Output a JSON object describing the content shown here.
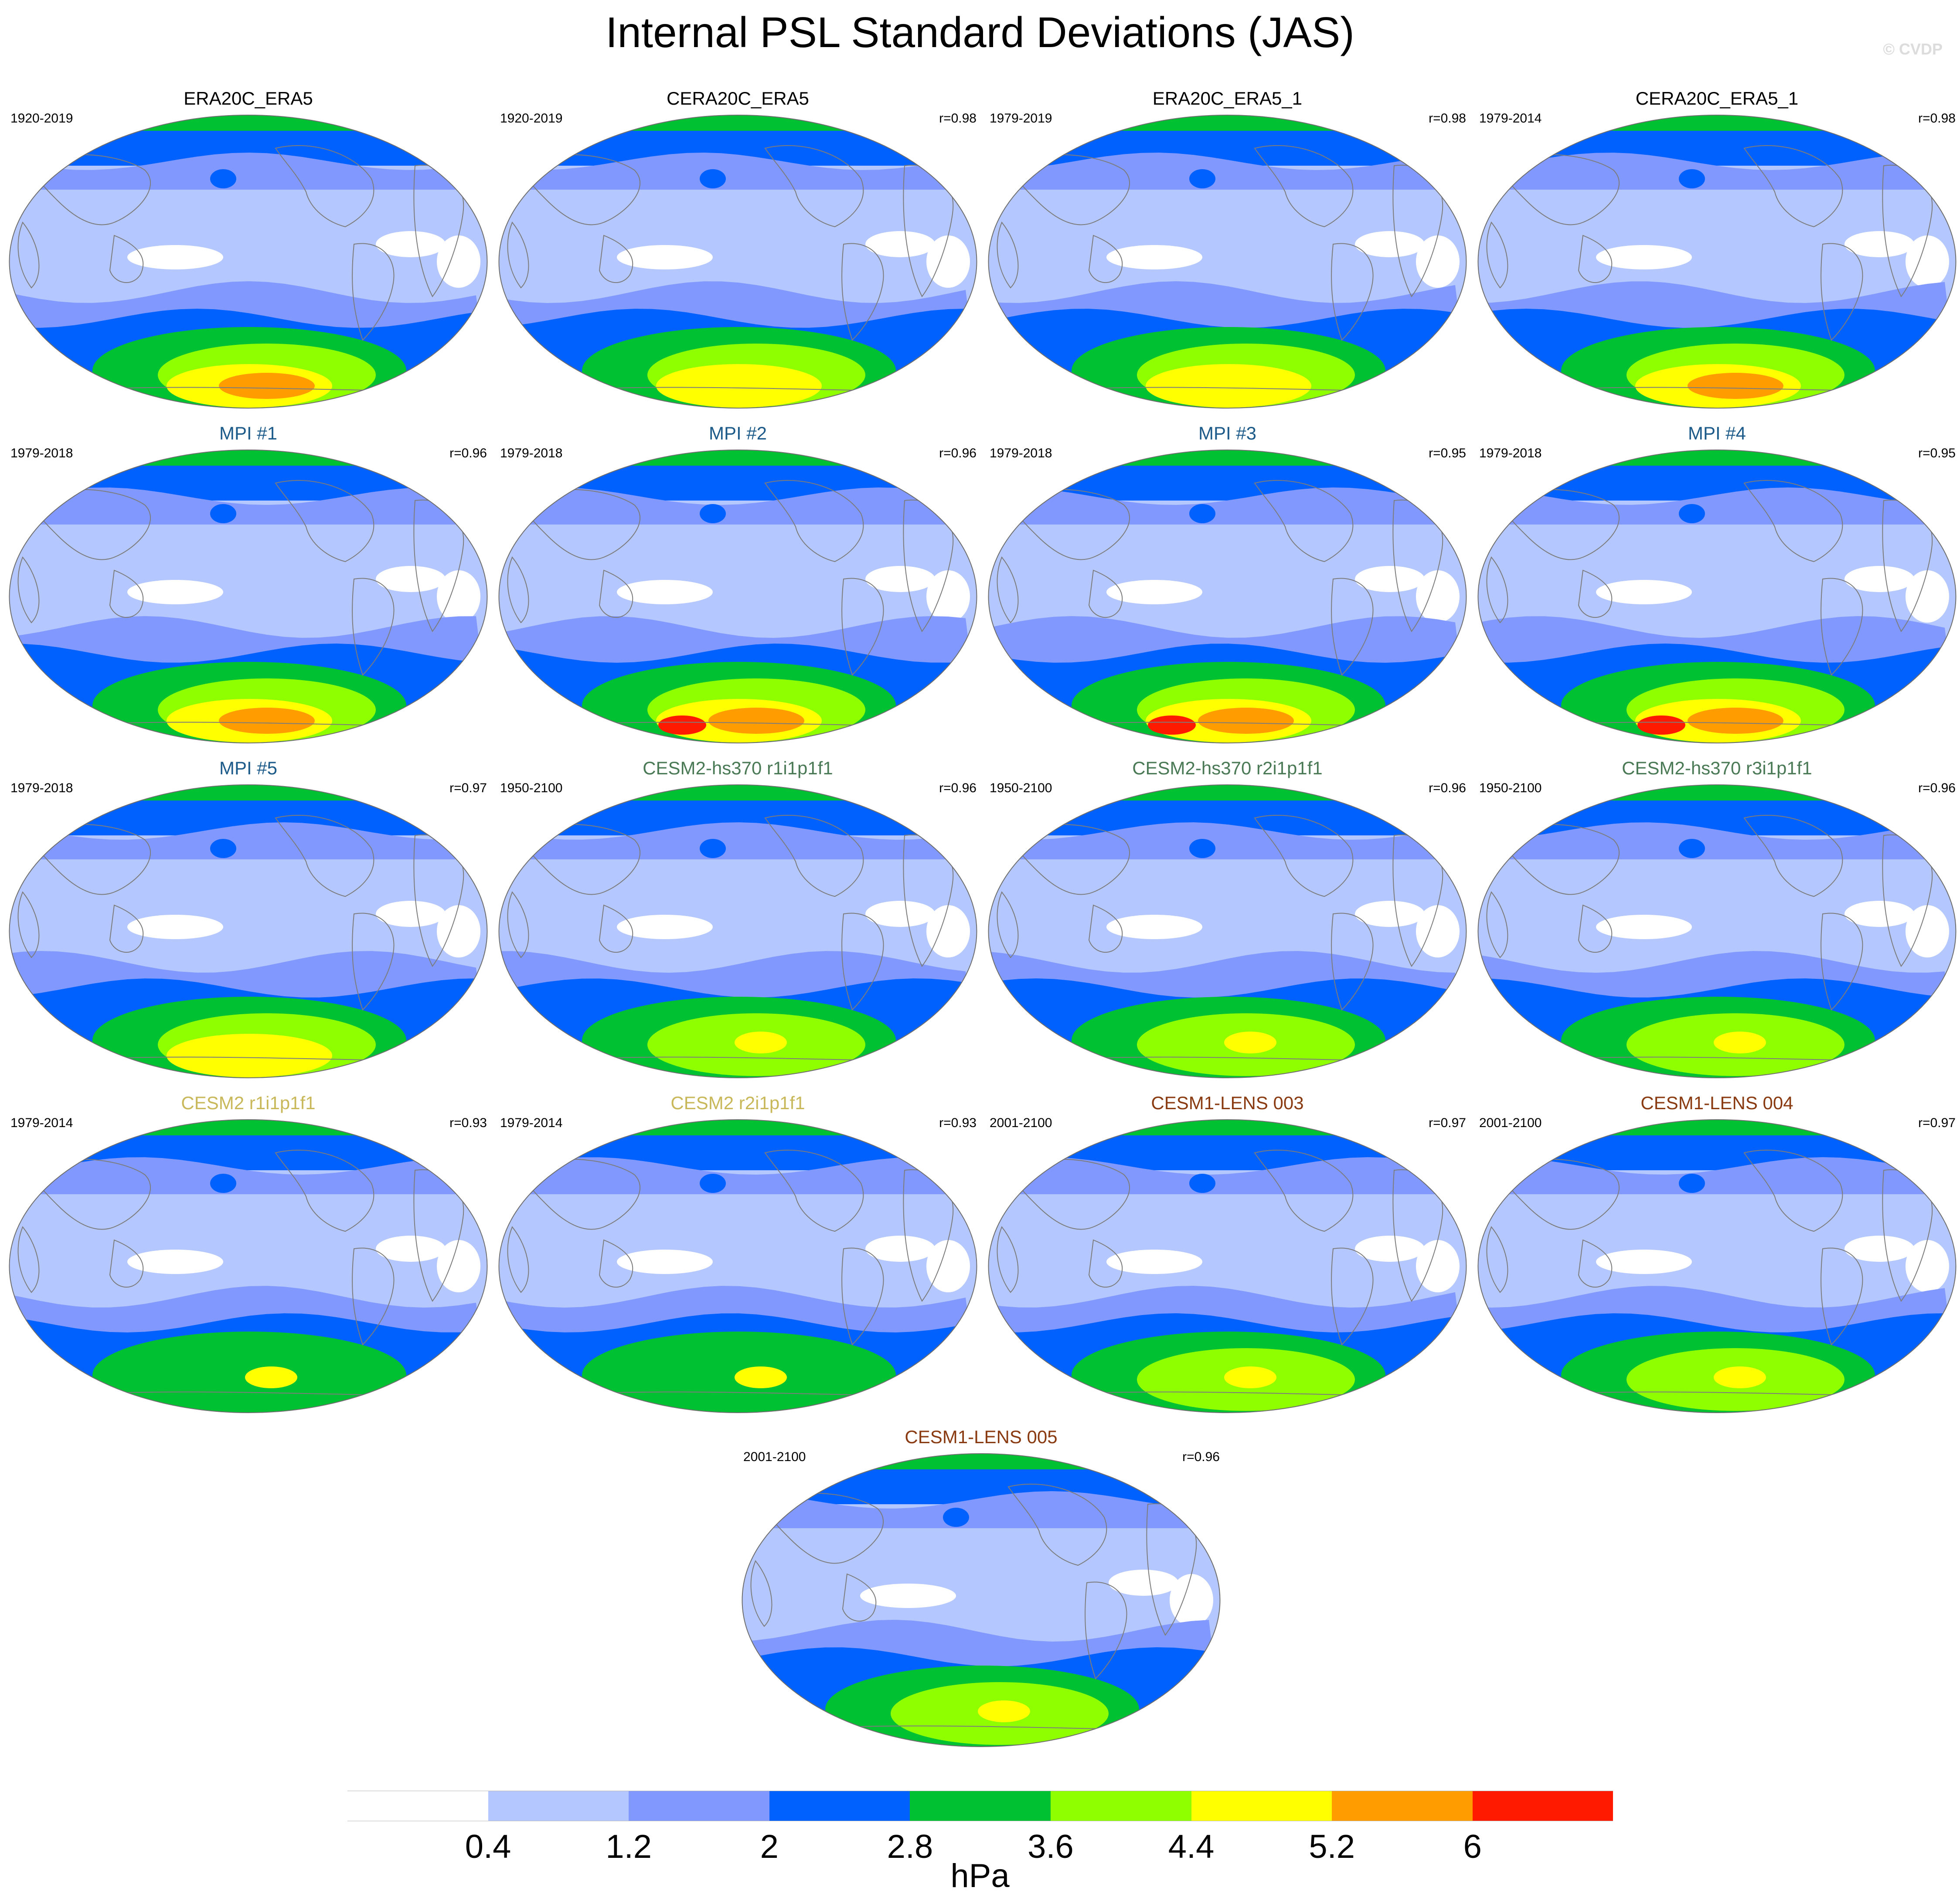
{
  "title": "Internal PSL Standard Deviations (JAS)",
  "credit": "© CVDP",
  "colors": {
    "bins": [
      "#ffffff",
      "#b4c7ff",
      "#8199ff",
      "#0061ff",
      "#00c131",
      "#8fff00",
      "#ffff00",
      "#ff9c00",
      "#ff1a00"
    ],
    "coast": "#7c7c7c",
    "title_default": "#000000",
    "title_mpi": "#1c5a8a",
    "title_cesm2_hs370": "#4a7a55",
    "title_cesm2": "#c9b85a",
    "title_cesm1_lens": "#8a3a10"
  },
  "panels": [
    {
      "title": "ERA20C_ERA5",
      "years": "1920-2019",
      "r": "",
      "title_color": "#000000",
      "level": 0.7
    },
    {
      "title": "CERA20C_ERA5",
      "years": "1920-2019",
      "r": "r=0.98",
      "title_color": "#000000",
      "level": 0.55
    },
    {
      "title": "ERA20C_ERA5_1",
      "years": "1979-2019",
      "r": "r=0.98",
      "title_color": "#000000",
      "level": 0.6
    },
    {
      "title": "CERA20C_ERA5_1",
      "years": "1979-2014",
      "r": "r=0.98",
      "title_color": "#000000",
      "level": 0.62
    },
    {
      "title": "MPI #1",
      "years": "1979-2018",
      "r": "r=0.96",
      "title_color": "#1c5a8a",
      "level": 0.72
    },
    {
      "title": "MPI #2",
      "years": "1979-2018",
      "r": "r=0.96",
      "title_color": "#1c5a8a",
      "level": 0.82
    },
    {
      "title": "MPI #3",
      "years": "1979-2018",
      "r": "r=0.95",
      "title_color": "#1c5a8a",
      "level": 0.85
    },
    {
      "title": "MPI #4",
      "years": "1979-2018",
      "r": "r=0.95",
      "title_color": "#1c5a8a",
      "level": 0.8
    },
    {
      "title": "MPI #5",
      "years": "1979-2018",
      "r": "r=0.97",
      "title_color": "#1c5a8a",
      "level": 0.55
    },
    {
      "title": "CESM2-hs370 r1i1p1f1",
      "years": "1950-2100",
      "r": "r=0.96",
      "title_color": "#4a7a55",
      "level": 0.45
    },
    {
      "title": "CESM2-hs370 r2i1p1f1",
      "years": "1950-2100",
      "r": "r=0.96",
      "title_color": "#4a7a55",
      "level": 0.5
    },
    {
      "title": "CESM2-hs370 r3i1p1f1",
      "years": "1950-2100",
      "r": "r=0.96",
      "title_color": "#4a7a55",
      "level": 0.48
    },
    {
      "title": "CESM2 r1i1p1f1",
      "years": "1979-2014",
      "r": "r=0.93",
      "title_color": "#c9b85a",
      "level": 0.35
    },
    {
      "title": "CESM2 r2i1p1f1",
      "years": "1979-2014",
      "r": "r=0.93",
      "title_color": "#c9b85a",
      "level": 0.35
    },
    {
      "title": "CESM1-LENS 003",
      "years": "2001-2100",
      "r": "r=0.97",
      "title_color": "#8a3a10",
      "level": 0.42
    },
    {
      "title": "CESM1-LENS 004",
      "years": "2001-2100",
      "r": "r=0.97",
      "title_color": "#8a3a10",
      "level": 0.38
    },
    {
      "title": "CESM1-LENS 005",
      "years": "2001-2100",
      "r": "r=0.96",
      "title_color": "#8a3a10",
      "level": 0.4
    }
  ],
  "colorbar": {
    "ticks": [
      "0.4",
      "1.2",
      "2",
      "2.8",
      "3.6",
      "4.4",
      "5.2",
      "6"
    ],
    "unit": "hPa"
  }
}
